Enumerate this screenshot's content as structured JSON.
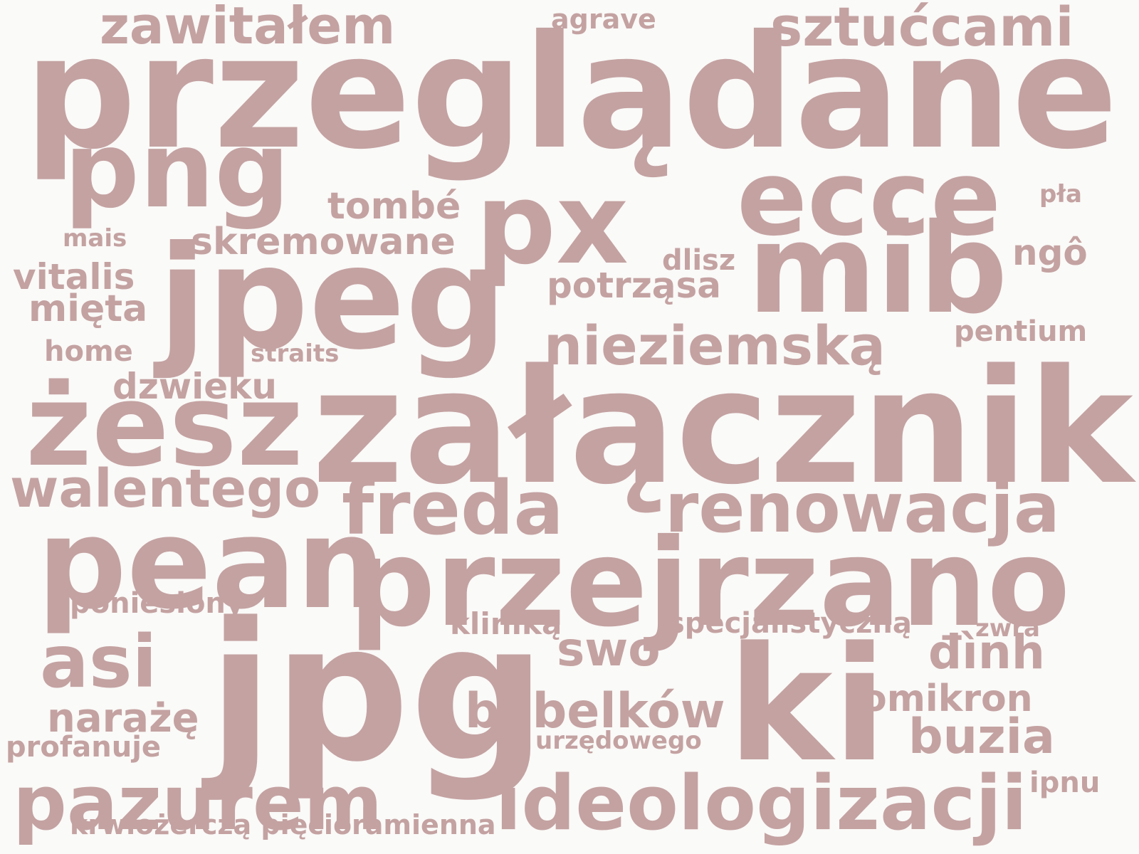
{
  "word_color": "#c4a2a2",
  "background_color": "#fafaf8",
  "words": [
    "przeglądane",
    "załącznik",
    "jpg",
    "przejrzano",
    "ki",
    "jpeg",
    "pean",
    "mib",
    "px",
    "żesz",
    "ecce",
    "png",
    "ideologizacji",
    "pazurem",
    "renowacja",
    "freda",
    "asi",
    "sztućcami",
    "zawitałem",
    "walentego",
    "nieziemską",
    "bąbelków",
    "buzia",
    "swo",
    "đình",
    "skremowane",
    "omikron",
    "narażę",
    "potrząsa",
    "mięta",
    "vitalis",
    "tombé",
    "ngô",
    "dzwieku",
    "poniesiony",
    "specjalistyczną",
    "kliniką",
    "krwiożerczą pięcioramienna",
    "profanuje",
    "pentium",
    "home",
    "dlisz",
    "agrave",
    "urzędowego",
    "ipnu",
    "mais",
    "straits",
    "pła",
    "zwra"
  ]
}
